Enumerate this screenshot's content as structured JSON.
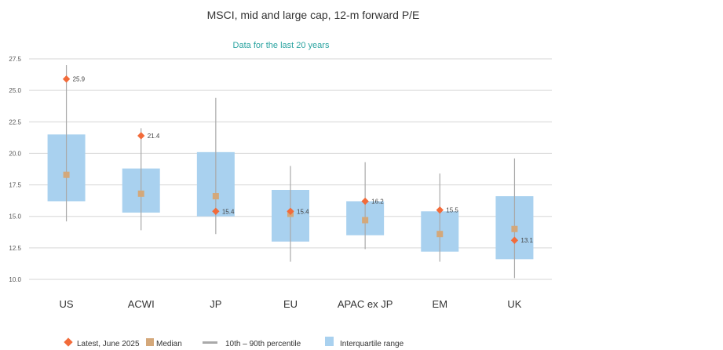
{
  "colors": {
    "latest": "#f26b3a",
    "median": "#d4a87a",
    "range": "#a9a9a9",
    "iqr": "#a9d1ef",
    "grid": "#d6d6d6",
    "subtitle": "#2aa3a0"
  },
  "chart_data": {
    "type": "box",
    "title": "MSCI, mid and large cap, 12-m forward P/E",
    "subtitle": "Data for the last 20 years",
    "ylim": [
      10.0,
      27.5
    ],
    "yticks": [
      "10.0",
      "12.5",
      "15.0",
      "17.5",
      "20.0",
      "22.5",
      "25.0",
      "27.5"
    ],
    "categories": [
      "US",
      "ACWI",
      "JP",
      "EU",
      "APAC ex JP",
      "EM",
      "UK"
    ],
    "p10": [
      14.6,
      13.9,
      13.6,
      11.4,
      12.4,
      11.4,
      10.1
    ],
    "p90": [
      27.0,
      22.0,
      24.4,
      19.0,
      19.3,
      18.4,
      19.6
    ],
    "q1": [
      16.2,
      15.3,
      15.0,
      13.0,
      13.5,
      12.2,
      11.6
    ],
    "q3": [
      21.5,
      18.8,
      20.1,
      17.1,
      16.2,
      15.4,
      16.6
    ],
    "median": [
      18.3,
      16.8,
      16.6,
      15.2,
      14.7,
      13.6,
      14.0
    ],
    "latest": [
      25.9,
      21.4,
      15.4,
      15.4,
      16.2,
      15.5,
      13.1
    ],
    "latest_labels": [
      "25.9",
      "21.4",
      "15.4",
      "15.4",
      "16.2",
      "15.5",
      "13.1"
    ],
    "legend": {
      "latest": "Latest, June 2025",
      "median": "Median",
      "range": "10th – 90th percentile",
      "iqr": "Interquartile range"
    },
    "legend_position": "bottom"
  }
}
